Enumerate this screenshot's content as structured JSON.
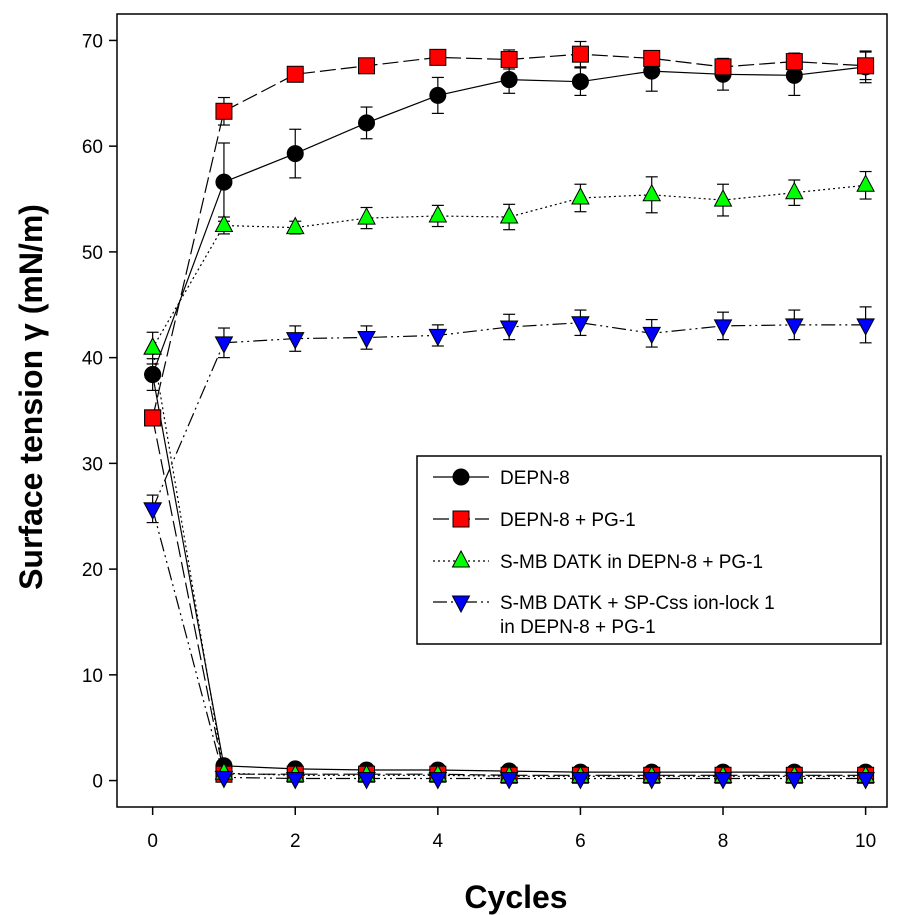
{
  "chart_data": {
    "type": "line",
    "title": "",
    "xlabel": "Cycles",
    "ylabel": "Surface tension γ (mN/m)",
    "xlim": [
      -0.5,
      10.3
    ],
    "ylim": [
      -2.5,
      72.5
    ],
    "xticks": [
      0,
      2,
      4,
      6,
      8,
      10
    ],
    "yticks": [
      0,
      10,
      20,
      30,
      40,
      50,
      60,
      70
    ],
    "legend": {
      "position": "center-right",
      "entries": [
        "DEPN-8",
        "DEPN-8 + PG-1",
        "S-MB DATK in DEPN-8 + PG-1",
        "S-MB DATK + SP-Css ion-lock 1\nin DEPN-8 + PG-1"
      ]
    },
    "series": [
      {
        "name": "DEPN-8",
        "marker": "circle",
        "color": "#000000",
        "dash": "",
        "max": {
          "x": [
            0,
            1,
            2,
            3,
            4,
            5,
            6,
            7,
            8,
            9,
            10
          ],
          "y": [
            38.4,
            56.6,
            59.3,
            62.2,
            64.8,
            66.3,
            66.1,
            67.1,
            66.8,
            66.7,
            67.5
          ],
          "err": [
            1.5,
            3.7,
            2.3,
            1.5,
            1.7,
            1.3,
            1.3,
            1.9,
            1.5,
            1.9,
            1.5
          ]
        },
        "min": {
          "x": [
            0,
            1,
            2,
            3,
            4,
            5,
            6,
            7,
            8,
            9,
            10
          ],
          "y": [
            38.4,
            1.4,
            1.1,
            1.0,
            1.0,
            0.9,
            0.8,
            0.8,
            0.8,
            0.8,
            0.8
          ],
          "err": [
            0,
            0.3,
            0.2,
            0.2,
            0.2,
            0.2,
            0.2,
            0.2,
            0.2,
            0.2,
            0.2
          ]
        }
      },
      {
        "name": "DEPN-8 + PG-1",
        "marker": "square",
        "color": "#ff0000",
        "dash": "16,5",
        "max": {
          "x": [
            0,
            1,
            2,
            3,
            4,
            5,
            6,
            7,
            8,
            9,
            10
          ],
          "y": [
            34.3,
            63.3,
            66.8,
            67.6,
            68.4,
            68.2,
            68.7,
            68.3,
            67.5,
            68.0,
            67.6
          ],
          "err": [
            0.6,
            1.3,
            0.5,
            0.5,
            0.5,
            0.9,
            1.2,
            0.6,
            0.7,
            0.8,
            1.3
          ]
        },
        "min": {
          "x": [
            0,
            1,
            2,
            3,
            4,
            5,
            6,
            7,
            8,
            9,
            10
          ],
          "y": [
            34.3,
            0.6,
            0.6,
            0.6,
            0.6,
            0.5,
            0.5,
            0.5,
            0.5,
            0.5,
            0.5
          ],
          "err": [
            0,
            0.2,
            0.2,
            0.2,
            0.2,
            0.2,
            0.2,
            0.2,
            0.2,
            0.2,
            0.2
          ]
        }
      },
      {
        "name": "S-MB DATK in DEPN-8 + PG-1",
        "marker": "triangle-up",
        "color": "#00ff00",
        "dash": "2,3",
        "max": {
          "x": [
            0,
            1,
            2,
            3,
            4,
            5,
            6,
            7,
            8,
            9,
            10
          ],
          "y": [
            40.9,
            52.5,
            52.3,
            53.2,
            53.4,
            53.3,
            55.1,
            55.4,
            54.9,
            55.6,
            56.3
          ],
          "err": [
            1.5,
            0.8,
            0.6,
            1.0,
            1.0,
            1.2,
            1.3,
            1.7,
            1.5,
            1.2,
            1.3
          ]
        },
        "min": {
          "x": [
            0,
            1,
            2,
            3,
            4,
            5,
            6,
            7,
            8,
            9,
            10
          ],
          "y": [
            40.9,
            0.7,
            0.5,
            0.5,
            0.5,
            0.4,
            0.4,
            0.4,
            0.4,
            0.4,
            0.4
          ],
          "err": [
            0,
            0.2,
            0.2,
            0.2,
            0.2,
            0.2,
            0.2,
            0.2,
            0.2,
            0.2,
            0.2
          ]
        }
      },
      {
        "name": "S-MB DATK + SP-Css ion-lock 1\nin DEPN-8 + PG-1",
        "marker": "triangle-down",
        "color": "#0000ff",
        "dash": "14,4,2,4,2,4",
        "max": {
          "x": [
            0,
            1,
            2,
            3,
            4,
            5,
            6,
            7,
            8,
            9,
            10
          ],
          "y": [
            25.7,
            41.4,
            41.8,
            41.9,
            42.1,
            42.9,
            43.3,
            42.3,
            43.0,
            43.1,
            43.1
          ],
          "err": [
            1.3,
            1.4,
            1.2,
            1.1,
            1.0,
            1.2,
            1.2,
            1.3,
            1.3,
            1.4,
            1.7
          ]
        },
        "min": {
          "x": [
            0,
            1,
            2,
            3,
            4,
            5,
            6,
            7,
            8,
            9,
            10
          ],
          "y": [
            25.7,
            0.3,
            0.2,
            0.2,
            0.2,
            0.2,
            0.2,
            0.2,
            0.2,
            0.2,
            0.2
          ],
          "err": [
            0,
            0.2,
            0.2,
            0.2,
            0.2,
            0.2,
            0.2,
            0.2,
            0.2,
            0.2,
            0.2
          ]
        }
      }
    ]
  }
}
